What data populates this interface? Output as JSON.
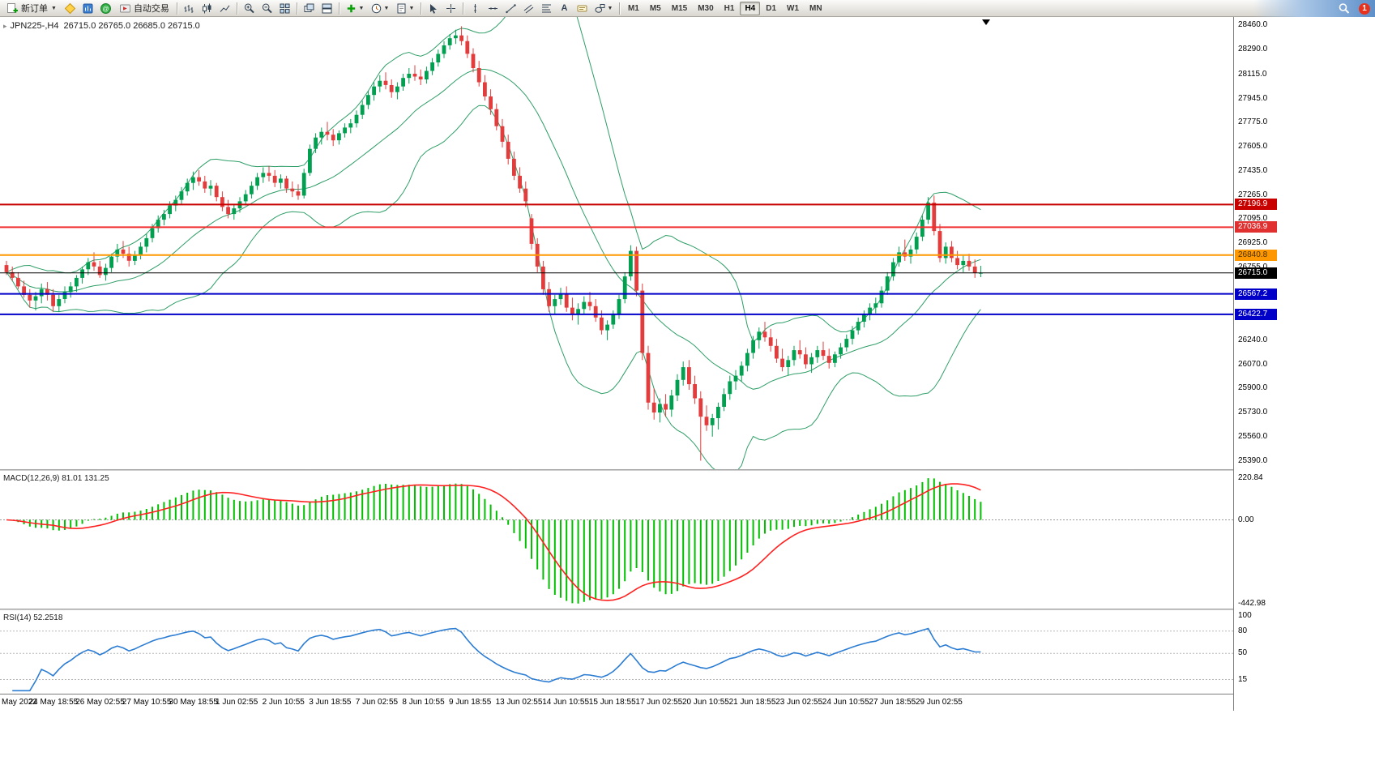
{
  "toolbar": {
    "new_order_label": "新订单",
    "autotrading_label": "自动交易",
    "notification_count": "1",
    "icons": [
      "new-order-icon",
      "metaeditor-icon",
      "market-watch-icon",
      "community-icon",
      "autotrading-icon",
      "bars-chart-icon",
      "candlestick-chart-icon",
      "line-chart-icon",
      "zoom-in-icon",
      "zoom-out-icon",
      "tile-windows-icon",
      "cascade-windows-icon",
      "arrange-windows-icon",
      "indicators-icon",
      "periods-icon",
      "templates-icon",
      "cursor-icon",
      "crosshair-icon",
      "vertical-line-icon",
      "horizontal-line-icon",
      "trendline-icon",
      "channel-icon",
      "fibonacci-icon",
      "text-icon",
      "label-icon",
      "shapes-icon",
      "search-icon"
    ],
    "timeframes": [
      {
        "label": "M1",
        "active": false
      },
      {
        "label": "M5",
        "active": false
      },
      {
        "label": "M15",
        "active": false
      },
      {
        "label": "M30",
        "active": false
      },
      {
        "label": "H1",
        "active": false
      },
      {
        "label": "H4",
        "active": true
      },
      {
        "label": "D1",
        "active": false
      },
      {
        "label": "W1",
        "active": false
      },
      {
        "label": "MN",
        "active": false
      }
    ]
  },
  "chart_data": {
    "type": "candlestick",
    "symbol": "JPN225-",
    "timeframe": "H4",
    "title": "JPN225-,H4  26715.0 26765.0 26685.0 26715.0",
    "ohlc_display": {
      "open": "26715.0",
      "high": "26765.0",
      "low": "26685.0",
      "close": "26715.0"
    },
    "candle_colors": {
      "up": "#00a050",
      "down": "#e23c3c"
    },
    "bollinger": {
      "period": 20,
      "deviation": 2,
      "color": "#2e9e67"
    },
    "y_axis_labels": [
      "28460.0",
      "28290.0",
      "28115.0",
      "27945.0",
      "27775.0",
      "27605.0",
      "27435.0",
      "27265.0",
      "27095.0",
      "26925.0",
      "26755.0",
      "26240.0",
      "26070.0",
      "25900.0",
      "25730.0",
      "25560.0",
      "25390.0"
    ],
    "x_axis_labels": [
      {
        "text": "May 2022",
        "bar": 0
      },
      {
        "text": "24 May 18:55",
        "bar": 8
      },
      {
        "text": "26 May 02:55",
        "bar": 16
      },
      {
        "text": "27 May 10:55",
        "bar": 24
      },
      {
        "text": "30 May 18:55",
        "bar": 32
      },
      {
        "text": "1 Jun 02:55",
        "bar": 40
      },
      {
        "text": "2 Jun 10:55",
        "bar": 48
      },
      {
        "text": "3 Jun 18:55",
        "bar": 56
      },
      {
        "text": "7 Jun 02:55",
        "bar": 64
      },
      {
        "text": "8 Jun 10:55",
        "bar": 72
      },
      {
        "text": "9 Jun 18:55",
        "bar": 80
      },
      {
        "text": "13 Jun 02:55",
        "bar": 88
      },
      {
        "text": "14 Jun 10:55",
        "bar": 96
      },
      {
        "text": "15 Jun 18:55",
        "bar": 104
      },
      {
        "text": "17 Jun 02:55",
        "bar": 112
      },
      {
        "text": "20 Jun 10:55",
        "bar": 120
      },
      {
        "text": "21 Jun 18:55",
        "bar": 128
      },
      {
        "text": "23 Jun 02:55",
        "bar": 136
      },
      {
        "text": "24 Jun 10:55",
        "bar": 144
      },
      {
        "text": "27 Jun 18:55",
        "bar": 152
      },
      {
        "text": "29 Jun 02:55",
        "bar": 160
      }
    ],
    "price_lines": [
      {
        "price": 27196.9,
        "color": "#c80000",
        "width": 2,
        "tag_bg": "#c80000",
        "tag_text": "#ffffff",
        "is_bid": false
      },
      {
        "price": 27036.9,
        "color": "#f03030",
        "width": 2,
        "tag_bg": "#e03030",
        "tag_text": "#ffffff",
        "is_bid": false
      },
      {
        "price": 26840.8,
        "color": "#ff9800",
        "width": 2,
        "tag_bg": "#ff9800",
        "tag_text": "#4a3000",
        "is_bid": false
      },
      {
        "price": 26715.0,
        "color": "#000000",
        "width": 1,
        "tag_bg": "#000000",
        "tag_text": "#ffffff",
        "is_bid": true
      },
      {
        "price": 26567.2,
        "color": "#0000c8",
        "width": 2,
        "tag_bg": "#0000c8",
        "tag_text": "#ffffff",
        "is_bid": false
      },
      {
        "price": 26422.7,
        "color": "#0000c8",
        "width": 2,
        "tag_bg": "#0000c8",
        "tag_text": "#ffffff",
        "is_bid": false
      }
    ],
    "macd": {
      "title": "MACD(12,26,9) 81.01 131.25",
      "params": [
        12,
        26,
        9
      ],
      "value": 81.01,
      "signal_value": 131.25,
      "axis_labels": [
        "220.84",
        "0.00",
        "-442.98"
      ],
      "scale_max": 220.84,
      "scale_min": -442.98,
      "histogram_color": "#00c000",
      "signal_color": "#ff2020"
    },
    "rsi": {
      "title": "RSI(14) 52.2518",
      "period": 14,
      "value": 52.2518,
      "axis_labels": [
        "100",
        "80",
        "50",
        "15"
      ],
      "levels": [
        80,
        50,
        15
      ],
      "line_color": "#2b7cd3"
    },
    "candles_ohlc": [
      [
        26770,
        26800,
        26700,
        26720
      ],
      [
        26720,
        26760,
        26660,
        26680
      ],
      [
        26680,
        26720,
        26600,
        26620
      ],
      [
        26620,
        26660,
        26540,
        26560
      ],
      [
        26560,
        26600,
        26470,
        26520
      ],
      [
        26520,
        26580,
        26450,
        26550
      ],
      [
        26550,
        26640,
        26500,
        26600
      ],
      [
        26600,
        26650,
        26520,
        26560
      ],
      [
        26560,
        26600,
        26440,
        26480
      ],
      [
        26480,
        26560,
        26440,
        26530
      ],
      [
        26530,
        26620,
        26500,
        26580
      ],
      [
        26580,
        26650,
        26540,
        26620
      ],
      [
        26620,
        26700,
        26580,
        26680
      ],
      [
        26680,
        26760,
        26640,
        26740
      ],
      [
        26740,
        26820,
        26700,
        26790
      ],
      [
        26790,
        26860,
        26730,
        26760
      ],
      [
        26760,
        26800,
        26680,
        26700
      ],
      [
        26700,
        26780,
        26660,
        26750
      ],
      [
        26750,
        26850,
        26720,
        26830
      ],
      [
        26830,
        26920,
        26790,
        26880
      ],
      [
        26880,
        26940,
        26820,
        26850
      ],
      [
        26850,
        26900,
        26760,
        26800
      ],
      [
        26800,
        26870,
        26770,
        26840
      ],
      [
        26840,
        26930,
        26810,
        26900
      ],
      [
        26900,
        26990,
        26860,
        26960
      ],
      [
        26960,
        27060,
        26930,
        27030
      ],
      [
        27030,
        27120,
        27000,
        27090
      ],
      [
        27090,
        27160,
        27050,
        27130
      ],
      [
        27130,
        27220,
        27100,
        27190
      ],
      [
        27190,
        27260,
        27150,
        27230
      ],
      [
        27230,
        27320,
        27200,
        27290
      ],
      [
        27290,
        27380,
        27260,
        27350
      ],
      [
        27350,
        27430,
        27300,
        27390
      ],
      [
        27390,
        27440,
        27330,
        27360
      ],
      [
        27360,
        27400,
        27280,
        27310
      ],
      [
        27310,
        27370,
        27260,
        27330
      ],
      [
        27330,
        27350,
        27220,
        27250
      ],
      [
        27250,
        27290,
        27150,
        27180
      ],
      [
        27180,
        27230,
        27100,
        27130
      ],
      [
        27130,
        27200,
        27090,
        27170
      ],
      [
        27170,
        27250,
        27140,
        27220
      ],
      [
        27220,
        27300,
        27190,
        27270
      ],
      [
        27270,
        27360,
        27240,
        27330
      ],
      [
        27330,
        27420,
        27300,
        27390
      ],
      [
        27390,
        27460,
        27350,
        27420
      ],
      [
        27420,
        27470,
        27360,
        27400
      ],
      [
        27400,
        27440,
        27320,
        27350
      ],
      [
        27350,
        27410,
        27310,
        27380
      ],
      [
        27380,
        27400,
        27280,
        27310
      ],
      [
        27310,
        27360,
        27250,
        27290
      ],
      [
        27290,
        27340,
        27230,
        27260
      ],
      [
        27260,
        27450,
        27240,
        27420
      ],
      [
        27420,
        27620,
        27400,
        27590
      ],
      [
        27590,
        27700,
        27560,
        27670
      ],
      [
        27670,
        27740,
        27620,
        27710
      ],
      [
        27710,
        27780,
        27650,
        27690
      ],
      [
        27690,
        27730,
        27610,
        27650
      ],
      [
        27650,
        27720,
        27620,
        27700
      ],
      [
        27700,
        27770,
        27670,
        27740
      ],
      [
        27740,
        27800,
        27700,
        27770
      ],
      [
        27770,
        27860,
        27740,
        27830
      ],
      [
        27830,
        27930,
        27800,
        27900
      ],
      [
        27900,
        28000,
        27870,
        27970
      ],
      [
        27970,
        28060,
        27930,
        28030
      ],
      [
        28030,
        28110,
        27990,
        28070
      ],
      [
        28070,
        28130,
        28010,
        28040
      ],
      [
        28040,
        28080,
        27950,
        27990
      ],
      [
        27990,
        28060,
        27940,
        28030
      ],
      [
        28030,
        28120,
        28000,
        28090
      ],
      [
        28090,
        28160,
        28050,
        28120
      ],
      [
        28120,
        28180,
        28070,
        28100
      ],
      [
        28100,
        28150,
        28040,
        28080
      ],
      [
        28080,
        28170,
        28050,
        28140
      ],
      [
        28140,
        28230,
        28110,
        28200
      ],
      [
        28200,
        28290,
        28170,
        28260
      ],
      [
        28260,
        28350,
        28230,
        28320
      ],
      [
        28320,
        28400,
        28290,
        28370
      ],
      [
        28370,
        28430,
        28330,
        28390
      ],
      [
        28390,
        28455,
        28320,
        28350
      ],
      [
        28350,
        28390,
        28230,
        28260
      ],
      [
        28260,
        28300,
        28130,
        28160
      ],
      [
        28160,
        28210,
        28030,
        28060
      ],
      [
        28060,
        28110,
        27930,
        27960
      ],
      [
        27960,
        28010,
        27830,
        27870
      ],
      [
        27870,
        27910,
        27720,
        27750
      ],
      [
        27750,
        27800,
        27600,
        27640
      ],
      [
        27640,
        27690,
        27480,
        27520
      ],
      [
        27520,
        27570,
        27370,
        27400
      ],
      [
        27400,
        27460,
        27280,
        27310
      ],
      [
        27310,
        27360,
        27180,
        27220
      ],
      [
        27100,
        27130,
        26880,
        26920
      ],
      [
        26920,
        26960,
        26720,
        26760
      ],
      [
        26760,
        26800,
        26560,
        26600
      ],
      [
        26600,
        26650,
        26440,
        26480
      ],
      [
        26480,
        26560,
        26420,
        26530
      ],
      [
        26530,
        26610,
        26490,
        26570
      ],
      [
        26570,
        26620,
        26440,
        26470
      ],
      [
        26470,
        26540,
        26380,
        26420
      ],
      [
        26420,
        26500,
        26350,
        26460
      ],
      [
        26460,
        26550,
        26420,
        26510
      ],
      [
        26510,
        26580,
        26450,
        26480
      ],
      [
        26480,
        26530,
        26370,
        26400
      ],
      [
        26400,
        26450,
        26280,
        26310
      ],
      [
        26310,
        26380,
        26240,
        26350
      ],
      [
        26350,
        26450,
        26320,
        26420
      ],
      [
        26420,
        26560,
        26390,
        26530
      ],
      [
        26530,
        26720,
        26500,
        26690
      ],
      [
        26690,
        26910,
        26660,
        26870
      ],
      [
        26870,
        26900,
        26550,
        26590
      ],
      [
        26590,
        26640,
        26100,
        26150
      ],
      [
        26150,
        26200,
        25750,
        25800
      ],
      [
        25800,
        25900,
        25680,
        25730
      ],
      [
        25730,
        25830,
        25660,
        25790
      ],
      [
        25790,
        25860,
        25700,
        25750
      ],
      [
        25750,
        25890,
        25700,
        25850
      ],
      [
        25850,
        26000,
        25810,
        25960
      ],
      [
        25960,
        26090,
        25920,
        26050
      ],
      [
        26050,
        26100,
        25890,
        25930
      ],
      [
        25930,
        25990,
        25790,
        25830
      ],
      [
        25830,
        25880,
        25390,
        25700
      ],
      [
        25700,
        25780,
        25600,
        25640
      ],
      [
        25640,
        25720,
        25560,
        25690
      ],
      [
        25690,
        25800,
        25610,
        25770
      ],
      [
        25770,
        25900,
        25740,
        25860
      ],
      [
        25860,
        25990,
        25820,
        25950
      ],
      [
        25950,
        26030,
        25890,
        25990
      ],
      [
        25990,
        26090,
        25950,
        26060
      ],
      [
        26060,
        26180,
        26020,
        26150
      ],
      [
        26150,
        26270,
        26110,
        26240
      ],
      [
        26240,
        26330,
        26180,
        26300
      ],
      [
        26300,
        26370,
        26230,
        26260
      ],
      [
        26260,
        26320,
        26160,
        26200
      ],
      [
        26200,
        26250,
        26080,
        26110
      ],
      [
        26110,
        26180,
        26020,
        26050
      ],
      [
        26050,
        26130,
        25990,
        26100
      ],
      [
        26100,
        26200,
        26060,
        26170
      ],
      [
        26170,
        26240,
        26110,
        26140
      ],
      [
        26140,
        26190,
        26040,
        26070
      ],
      [
        26070,
        26150,
        26010,
        26120
      ],
      [
        26120,
        26200,
        26080,
        26170
      ],
      [
        26170,
        26230,
        26100,
        26130
      ],
      [
        26130,
        26180,
        26040,
        26080
      ],
      [
        26080,
        26160,
        26050,
        26140
      ],
      [
        26140,
        26220,
        26110,
        26190
      ],
      [
        26190,
        26280,
        26160,
        26250
      ],
      [
        26250,
        26340,
        26210,
        26310
      ],
      [
        26310,
        26400,
        26280,
        26370
      ],
      [
        26370,
        26450,
        26330,
        26420
      ],
      [
        26420,
        26500,
        26380,
        26470
      ],
      [
        26470,
        26540,
        26430,
        26500
      ],
      [
        26500,
        26620,
        26470,
        26590
      ],
      [
        26590,
        26720,
        26560,
        26690
      ],
      [
        26690,
        26820,
        26660,
        26790
      ],
      [
        26790,
        26900,
        26760,
        26860
      ],
      [
        26860,
        26950,
        26800,
        26830
      ],
      [
        26830,
        26910,
        26780,
        26880
      ],
      [
        26880,
        27000,
        26850,
        26970
      ],
      [
        26970,
        27120,
        26940,
        27090
      ],
      [
        27090,
        27250,
        27060,
        27210
      ],
      [
        27210,
        27260,
        26980,
        27010
      ],
      [
        27010,
        27060,
        26790,
        26820
      ],
      [
        26820,
        26930,
        26780,
        26900
      ],
      [
        26900,
        26940,
        26790,
        26820
      ],
      [
        26820,
        26870,
        26740,
        26770
      ],
      [
        26770,
        26840,
        26720,
        26800
      ],
      [
        26800,
        26850,
        26730,
        26760
      ],
      [
        26760,
        26810,
        26680,
        26715
      ],
      [
        26715,
        26765,
        26685,
        26715
      ]
    ]
  }
}
